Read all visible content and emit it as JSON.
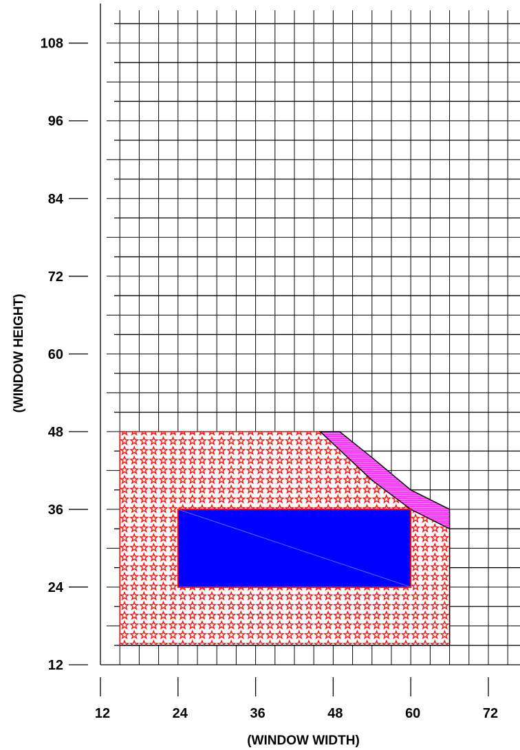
{
  "chart_data": {
    "type": "area",
    "xlabel": "(WINDOW WIDTH)",
    "ylabel": "(WINDOW HEIGHT)",
    "xlim": [
      12,
      76
    ],
    "ylim": [
      12,
      110
    ],
    "x_ticks": [
      12,
      24,
      36,
      48,
      60,
      72
    ],
    "x_tick_labels": [
      "12",
      "24",
      "36",
      "48",
      "60",
      "72"
    ],
    "y_ticks": [
      12,
      24,
      36,
      48,
      60,
      72,
      84,
      96,
      108
    ],
    "y_tick_labels": [
      "12",
      "24",
      "36",
      "48",
      "60",
      "72",
      "84",
      "96",
      "108"
    ],
    "grid": true,
    "colors": {
      "region_outline": "#ff0000",
      "star_pattern": "#ff0000",
      "rectangle_fill": "#0000ff",
      "strip_fill": "#ff33ff",
      "grid": "#000000"
    },
    "regions": [
      {
        "fill": "red-star-pattern",
        "polygon": [
          [
            15,
            15
          ],
          [
            66,
            15
          ],
          [
            66,
            33
          ],
          [
            60,
            36
          ],
          [
            54,
            40.5
          ],
          [
            46,
            48
          ],
          [
            15,
            48
          ]
        ]
      },
      {
        "fill": "magenta-hatched",
        "polygon": [
          [
            46,
            48
          ],
          [
            49,
            48
          ],
          [
            54,
            44
          ],
          [
            60,
            39
          ],
          [
            66,
            36
          ],
          [
            66,
            33
          ],
          [
            60,
            36
          ],
          [
            54,
            40.5
          ]
        ]
      },
      {
        "fill": "blue-solid",
        "polygon": [
          [
            24,
            24
          ],
          [
            60,
            24
          ],
          [
            60,
            36
          ],
          [
            24,
            36
          ]
        ]
      }
    ]
  }
}
